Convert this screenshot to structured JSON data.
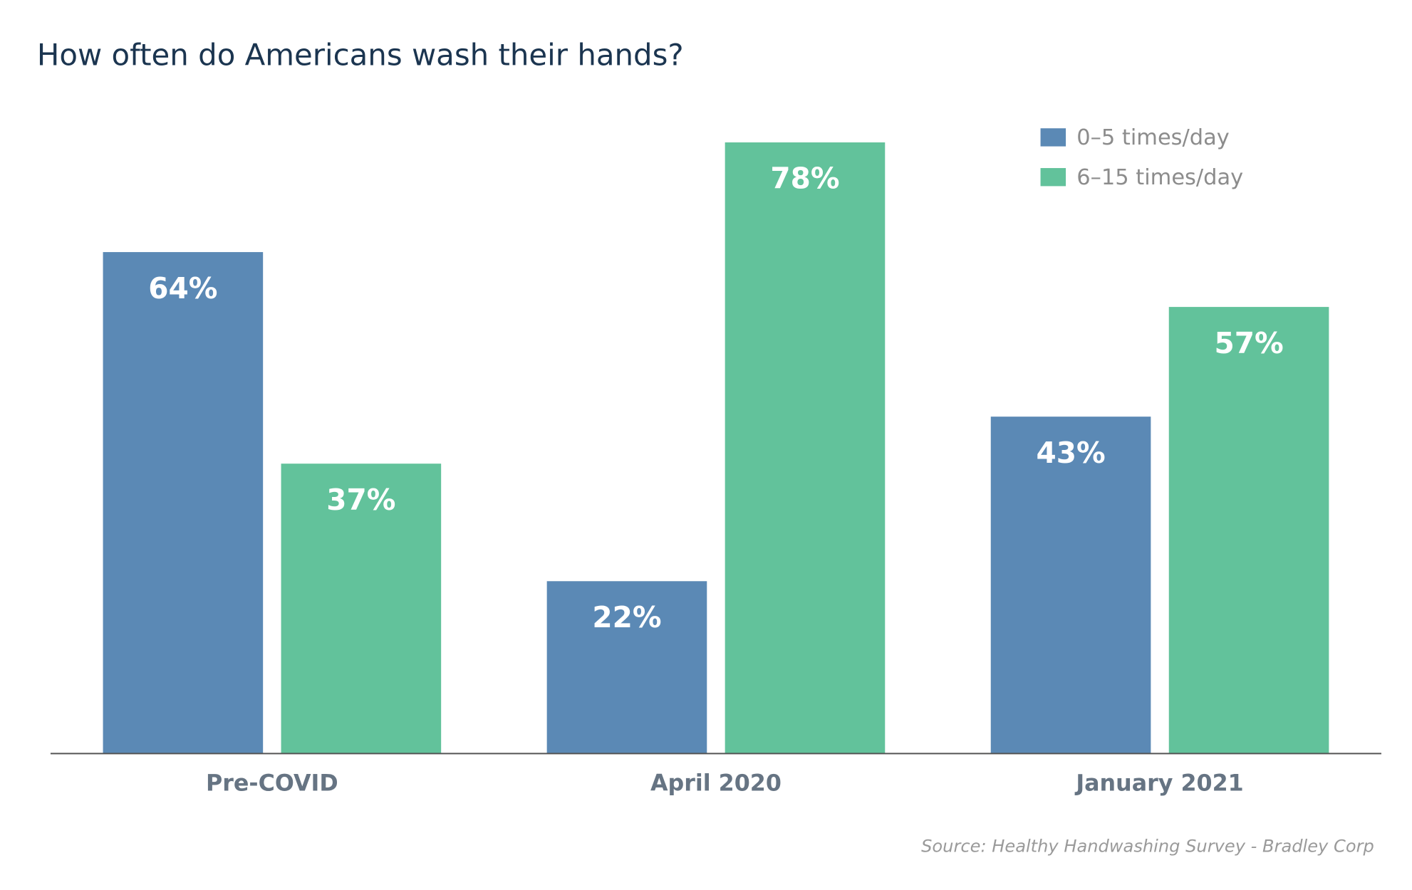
{
  "chart_data": {
    "type": "bar",
    "title": "How often do Americans wash their hands?",
    "categories": [
      "Pre-COVID",
      "April 2020",
      "January 2021"
    ],
    "series": [
      {
        "name": "0–5 times/day",
        "values": [
          64,
          22,
          43
        ],
        "labels": [
          "64%",
          "22%",
          "43%"
        ],
        "color": "#5b89b5"
      },
      {
        "name": "6–15 times/day",
        "values": [
          37,
          78,
          57
        ],
        "labels": [
          "37%",
          "78%",
          "57%"
        ],
        "color": "#62c29b"
      }
    ],
    "xlabel": "",
    "ylabel": "",
    "ylim": [
      0,
      80
    ],
    "grid": false,
    "legend_position": "top-right",
    "source": "Source: Healthy Handwashing Survey - Bradley Corp"
  }
}
